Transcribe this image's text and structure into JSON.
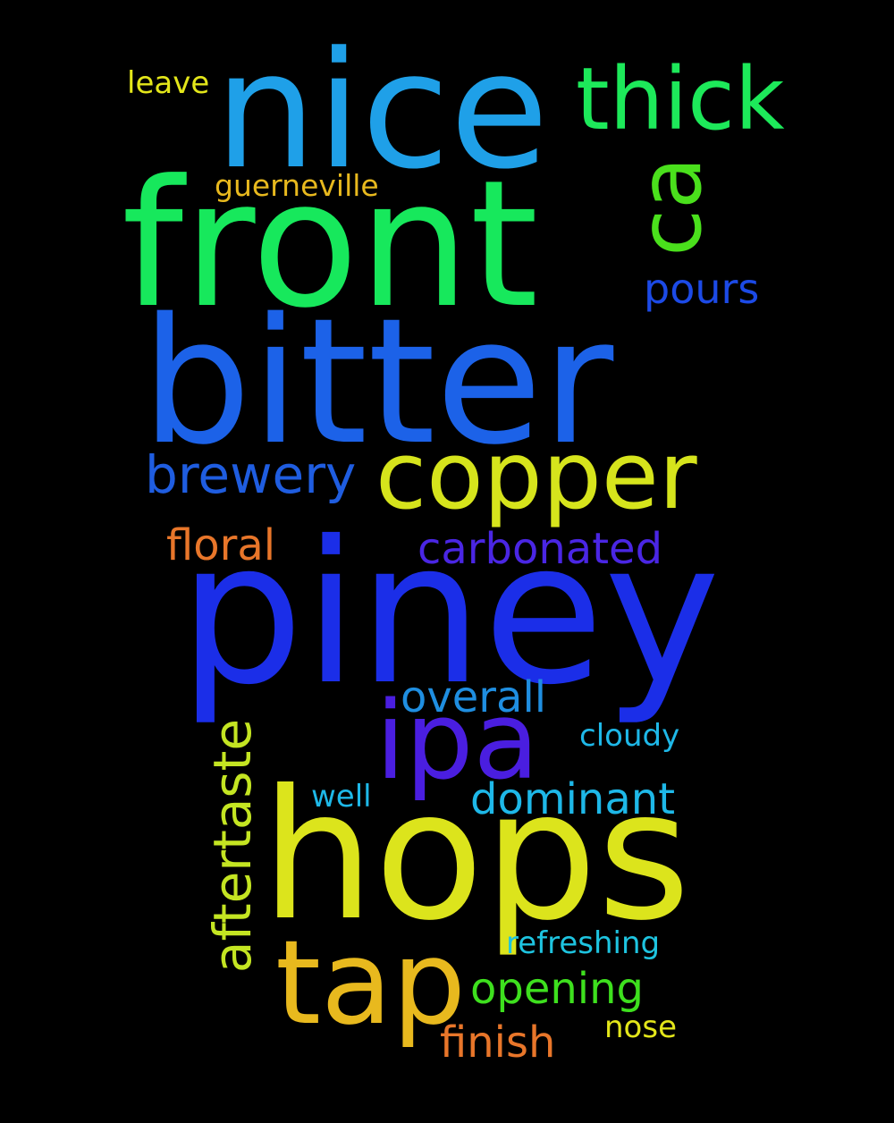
{
  "words": {
    "leave": {
      "text": "leave",
      "color": "#e3e61a"
    },
    "nice": {
      "text": "nice",
      "color": "#1fa0e8"
    },
    "thick": {
      "text": "thick",
      "color": "#1de95a"
    },
    "ca": {
      "text": "ca",
      "color": "#4ae01c"
    },
    "guerneville": {
      "text": "guerneville",
      "color": "#e8b91e"
    },
    "front": {
      "text": "front",
      "color": "#17e85c"
    },
    "pours": {
      "text": "pours",
      "color": "#1c4ae6"
    },
    "bitter": {
      "text": "bitter",
      "color": "#1c62e8"
    },
    "brewery": {
      "text": "brewery",
      "color": "#1f5de0"
    },
    "copper": {
      "text": "copper",
      "color": "#d6e41c"
    },
    "floral": {
      "text": "floral",
      "color": "#e8762a"
    },
    "carbonated": {
      "text": "carbonated",
      "color": "#4a26e4"
    },
    "piney": {
      "text": "piney",
      "color": "#1b2ee8"
    },
    "overall": {
      "text": "overall",
      "color": "#1f8ee0"
    },
    "aftertaste": {
      "text": "aftertaste",
      "color": "#c4e522"
    },
    "ipa": {
      "text": "ipa",
      "color": "#4a1ee0"
    },
    "cloudy": {
      "text": "cloudy",
      "color": "#1eb8e8"
    },
    "well": {
      "text": "well",
      "color": "#1eb8e8"
    },
    "dominant": {
      "text": "dominant",
      "color": "#1eb8e8"
    },
    "hops": {
      "text": "hops",
      "color": "#dce41c"
    },
    "refreshing": {
      "text": "refreshing",
      "color": "#1ec4e0"
    },
    "tap": {
      "text": "tap",
      "color": "#e8b91e"
    },
    "opening": {
      "text": "opening",
      "color": "#3ee01e"
    },
    "nose": {
      "text": "nose",
      "color": "#e3e61a"
    },
    "finish": {
      "text": "finish",
      "color": "#e8762a"
    }
  }
}
